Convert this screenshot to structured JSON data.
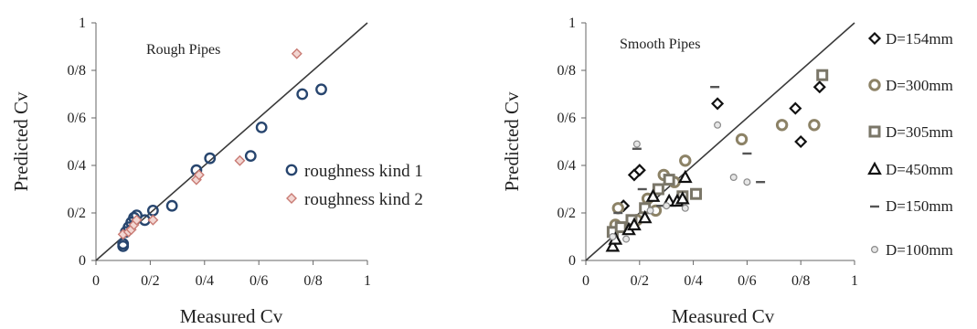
{
  "chart_data": [
    {
      "type": "scatter",
      "title": "Rough Pipes",
      "xlabel": "Measured Cv",
      "ylabel": "Predicted Cv",
      "xlim": [
        0,
        1
      ],
      "ylim": [
        0,
        1
      ],
      "xticks": [
        "0",
        "0/2",
        "0/4",
        "0/6",
        "0/8",
        "1"
      ],
      "yticks": [
        "0",
        "0/2",
        "0/4",
        "0/6",
        "0/8",
        "1"
      ],
      "reference_line": "y = x",
      "legend_position": "right",
      "series": [
        {
          "name": "roughness kind 1",
          "marker": "circle",
          "color": "#27456e",
          "points": [
            [
              0.1,
              0.07
            ],
            [
              0.1,
              0.06
            ],
            [
              0.11,
              0.12
            ],
            [
              0.12,
              0.14
            ],
            [
              0.13,
              0.16
            ],
            [
              0.14,
              0.18
            ],
            [
              0.15,
              0.19
            ],
            [
              0.18,
              0.17
            ],
            [
              0.21,
              0.21
            ],
            [
              0.28,
              0.23
            ],
            [
              0.37,
              0.38
            ],
            [
              0.42,
              0.43
            ],
            [
              0.57,
              0.44
            ],
            [
              0.61,
              0.56
            ],
            [
              0.76,
              0.7
            ],
            [
              0.83,
              0.72
            ]
          ]
        },
        {
          "name": "roughness kind 2",
          "marker": "diamond",
          "color": "#c97b74",
          "points": [
            [
              0.1,
              0.11
            ],
            [
              0.12,
              0.12
            ],
            [
              0.13,
              0.13
            ],
            [
              0.14,
              0.15
            ],
            [
              0.15,
              0.17
            ],
            [
              0.21,
              0.17
            ],
            [
              0.37,
              0.34
            ],
            [
              0.38,
              0.36
            ],
            [
              0.53,
              0.42
            ],
            [
              0.74,
              0.87
            ]
          ]
        }
      ]
    },
    {
      "type": "scatter",
      "title": "Smooth Pipes",
      "xlabel": "Measured Cv",
      "ylabel": "Predicted Cv",
      "xlim": [
        0,
        1
      ],
      "ylim": [
        0,
        1
      ],
      "xticks": [
        "0",
        "0/2",
        "0/4",
        "0/6",
        "0/8",
        "1"
      ],
      "yticks": [
        "0",
        "0/2",
        "0/4",
        "0/6",
        "0/8",
        "1"
      ],
      "reference_line": "y = x",
      "legend_position": "right",
      "series": [
        {
          "name": "D=154mm",
          "marker": "diamond-hollow",
          "color": "#111111",
          "points": [
            [
              0.14,
              0.23
            ],
            [
              0.18,
              0.36
            ],
            [
              0.2,
              0.38
            ],
            [
              0.49,
              0.66
            ],
            [
              0.78,
              0.64
            ],
            [
              0.8,
              0.5
            ],
            [
              0.87,
              0.73
            ]
          ]
        },
        {
          "name": "D=300mm",
          "marker": "circle-thick",
          "color": "#8c8266",
          "points": [
            [
              0.11,
              0.15
            ],
            [
              0.12,
              0.22
            ],
            [
              0.19,
              0.17
            ],
            [
              0.23,
              0.26
            ],
            [
              0.26,
              0.21
            ],
            [
              0.29,
              0.36
            ],
            [
              0.33,
              0.33
            ],
            [
              0.37,
              0.42
            ],
            [
              0.58,
              0.51
            ],
            [
              0.73,
              0.57
            ],
            [
              0.85,
              0.57
            ]
          ]
        },
        {
          "name": "D=305mm",
          "marker": "square",
          "color": "#7a7668",
          "points": [
            [
              0.1,
              0.12
            ],
            [
              0.13,
              0.14
            ],
            [
              0.17,
              0.17
            ],
            [
              0.22,
              0.22
            ],
            [
              0.27,
              0.3
            ],
            [
              0.31,
              0.34
            ],
            [
              0.36,
              0.27
            ],
            [
              0.41,
              0.28
            ],
            [
              0.88,
              0.78
            ]
          ]
        },
        {
          "name": "D=450mm",
          "marker": "triangle",
          "color": "#111111",
          "points": [
            [
              0.1,
              0.06
            ],
            [
              0.11,
              0.09
            ],
            [
              0.16,
              0.13
            ],
            [
              0.18,
              0.15
            ],
            [
              0.22,
              0.18
            ],
            [
              0.25,
              0.27
            ],
            [
              0.31,
              0.25
            ],
            [
              0.34,
              0.25
            ],
            [
              0.36,
              0.26
            ],
            [
              0.37,
              0.35
            ]
          ]
        },
        {
          "name": "D=150mm",
          "marker": "dash",
          "color": "#555555",
          "points": [
            [
              0.12,
              0.2
            ],
            [
              0.19,
              0.47
            ],
            [
              0.21,
              0.3
            ],
            [
              0.28,
              0.23
            ],
            [
              0.48,
              0.73
            ],
            [
              0.6,
              0.45
            ],
            [
              0.65,
              0.33
            ]
          ]
        },
        {
          "name": "D=100mm",
          "marker": "dot",
          "color": "#8a8a8a",
          "points": [
            [
              0.1,
              0.1
            ],
            [
              0.15,
              0.09
            ],
            [
              0.19,
              0.49
            ],
            [
              0.24,
              0.21
            ],
            [
              0.3,
              0.23
            ],
            [
              0.37,
              0.22
            ],
            [
              0.49,
              0.57
            ],
            [
              0.55,
              0.35
            ],
            [
              0.6,
              0.33
            ]
          ]
        }
      ]
    }
  ]
}
